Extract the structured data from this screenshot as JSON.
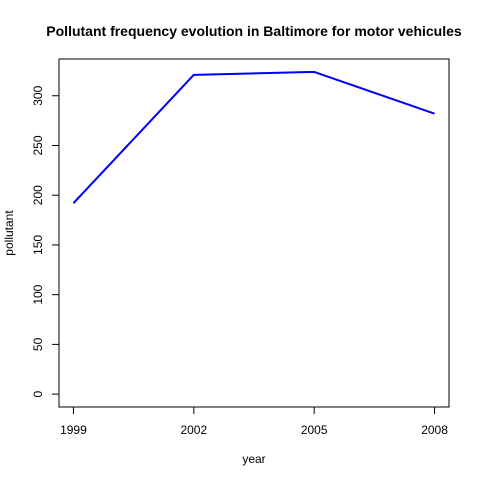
{
  "chart_data": {
    "type": "line",
    "title": "Pollutant frequency evolution in Baltimore for motor vehicules",
    "xlabel": "year",
    "ylabel": "pollutant",
    "x": [
      1999,
      2002,
      2005,
      2008
    ],
    "series": [
      {
        "values": [
          192,
          321,
          324,
          282
        ],
        "color": "#0000ff"
      }
    ],
    "xticks": [
      "1999",
      "2002",
      "2005",
      "2008"
    ],
    "yticks": [
      "0",
      "50",
      "100",
      "150",
      "200",
      "250",
      "300"
    ],
    "xlim": [
      1998.64,
      2008.36
    ],
    "ylim": [
      -12.96,
      336.96
    ],
    "grid": false,
    "legend": "none"
  }
}
